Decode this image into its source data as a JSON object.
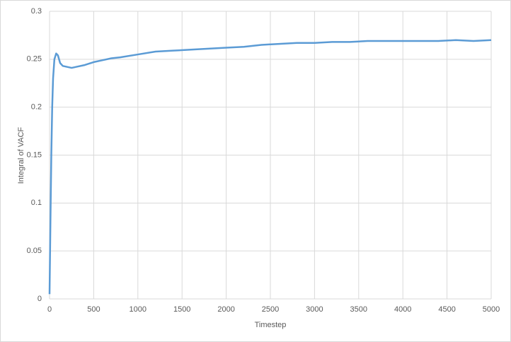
{
  "chart_data": {
    "type": "line",
    "x_label": "Timestep",
    "y_label": "Integral of VACF",
    "x": [
      0,
      10,
      20,
      30,
      40,
      55,
      75,
      95,
      120,
      150,
      200,
      250,
      300,
      400,
      500,
      600,
      700,
      800,
      1000,
      1200,
      1400,
      1600,
      1800,
      2000,
      2200,
      2400,
      2600,
      2800,
      3000,
      3200,
      3400,
      3600,
      3800,
      4000,
      4200,
      4400,
      4600,
      4800,
      5000
    ],
    "series": [
      {
        "name": "Integral of VACF",
        "color": "#5b9bd5",
        "values": [
          0.005,
          0.08,
          0.15,
          0.2,
          0.23,
          0.25,
          0.256,
          0.254,
          0.246,
          0.243,
          0.242,
          0.241,
          0.242,
          0.244,
          0.247,
          0.249,
          0.251,
          0.252,
          0.255,
          0.258,
          0.259,
          0.26,
          0.261,
          0.262,
          0.263,
          0.265,
          0.266,
          0.267,
          0.267,
          0.268,
          0.268,
          0.269,
          0.269,
          0.269,
          0.269,
          0.269,
          0.27,
          0.269,
          0.27
        ]
      }
    ],
    "xlim": [
      0,
      5000
    ],
    "xticks": [
      0,
      500,
      1000,
      1500,
      2000,
      2500,
      3000,
      3500,
      4000,
      4500,
      5000
    ],
    "ylim": [
      0,
      0.3
    ],
    "yticks": [
      0,
      0.05,
      0.1,
      0.15,
      0.2,
      0.25,
      0.3
    ],
    "grid": true
  }
}
